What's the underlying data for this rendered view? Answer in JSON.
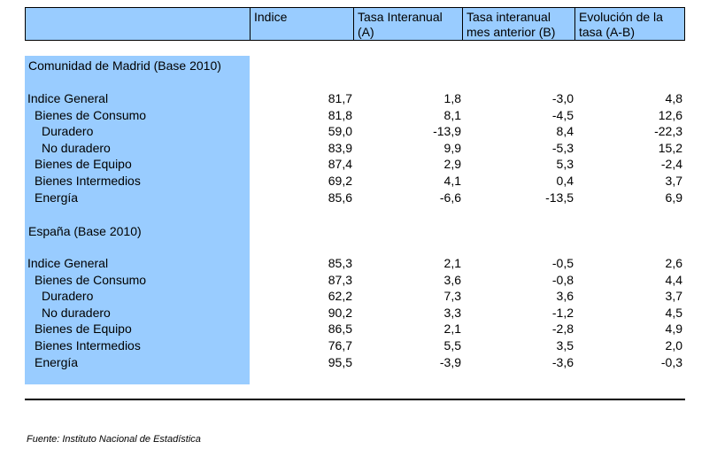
{
  "headers": [
    "Indice",
    "Tasa Interanual (A)",
    "Tasa interanual mes anterior (B)",
    "Evolución de la tasa (A-B)"
  ],
  "header_lines": [
    [
      "Indice",
      ""
    ],
    [
      "Tasa Interanual",
      "(A)"
    ],
    [
      "Tasa interanual",
      "mes anterior (B)"
    ],
    [
      "Evolución de la",
      "tasa (A-B)"
    ]
  ],
  "sections": [
    {
      "title": "Comunidad de Madrid (Base 2010)",
      "rows": [
        {
          "label": "Indice General",
          "indent": 0,
          "values": [
            "81,7",
            "1,8",
            "-3,0",
            "4,8"
          ]
        },
        {
          "label": "Bienes de Consumo",
          "indent": 1,
          "values": [
            "81,8",
            "8,1",
            "-4,5",
            "12,6"
          ]
        },
        {
          "label": "Duradero",
          "indent": 2,
          "values": [
            "59,0",
            "-13,9",
            "8,4",
            "-22,3"
          ]
        },
        {
          "label": "No duradero",
          "indent": 2,
          "values": [
            "83,9",
            "9,9",
            "-5,3",
            "15,2"
          ]
        },
        {
          "label": "Bienes de Equipo",
          "indent": 1,
          "values": [
            "87,4",
            "2,9",
            "5,3",
            "-2,4"
          ]
        },
        {
          "label": "Bienes Intermedios",
          "indent": 1,
          "values": [
            "69,2",
            "4,1",
            "0,4",
            "3,7"
          ]
        },
        {
          "label": "Energía",
          "indent": 1,
          "values": [
            "85,6",
            "-6,6",
            "-13,5",
            "6,9"
          ]
        }
      ]
    },
    {
      "title": "España (Base 2010)",
      "rows": [
        {
          "label": "Indice General",
          "indent": 0,
          "values": [
            "85,3",
            "2,1",
            "-0,5",
            "2,6"
          ]
        },
        {
          "label": "Bienes de Consumo",
          "indent": 1,
          "values": [
            "87,3",
            "3,6",
            "-0,8",
            "4,4"
          ]
        },
        {
          "label": "Duradero",
          "indent": 2,
          "values": [
            "62,2",
            "7,3",
            "3,6",
            "3,7"
          ]
        },
        {
          "label": "No duradero",
          "indent": 2,
          "values": [
            "90,2",
            "3,3",
            "-1,2",
            "4,5"
          ]
        },
        {
          "label": "Bienes de Equipo",
          "indent": 1,
          "values": [
            "86,5",
            "2,1",
            "-2,8",
            "4,9"
          ]
        },
        {
          "label": "Bienes Intermedios",
          "indent": 1,
          "values": [
            "76,7",
            "5,5",
            "3,5",
            "2,0"
          ]
        },
        {
          "label": "Energía",
          "indent": 1,
          "values": [
            "95,5",
            "-3,9",
            "-3,6",
            "-0,3"
          ]
        }
      ]
    }
  ],
  "source": "Fuente: Instituto Nacional de Estadística",
  "colors": {
    "shade": "#99ccff",
    "text": "#000000"
  }
}
